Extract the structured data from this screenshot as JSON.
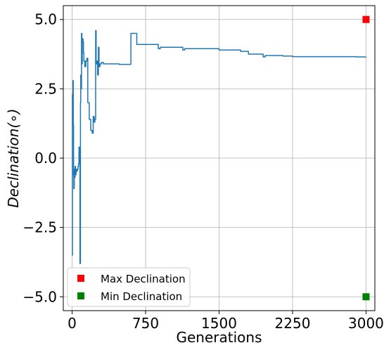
{
  "chart_data": {
    "type": "line",
    "xlabel": "Generations",
    "ylabel": "Declination(∘)",
    "xlim": [
      -90,
      3090
    ],
    "ylim": [
      -5.5,
      5.5
    ],
    "xticks": [
      0,
      750,
      1500,
      2250,
      3000
    ],
    "xtick_labels": [
      "0",
      "750",
      "1500",
      "2250",
      "3000"
    ],
    "yticks": [
      -5.0,
      -2.5,
      0.0,
      2.5,
      5.0
    ],
    "ytick_labels": [
      "−5.0",
      "−2.5",
      "0.0",
      "2.5",
      "5.0"
    ],
    "grid": true,
    "legend_placement": "lower-left",
    "series": [
      {
        "name": "",
        "style": "line",
        "color": "#1f77b4",
        "x": [
          0,
          3,
          6,
          9,
          12,
          15,
          18,
          22,
          26,
          30,
          35,
          40,
          45,
          50,
          55,
          60,
          65,
          70,
          75,
          80,
          85,
          88,
          92,
          96,
          100,
          104,
          108,
          112,
          116,
          120,
          130,
          140,
          145,
          150,
          160,
          175,
          190,
          205,
          215,
          225,
          232,
          240,
          245,
          250,
          255,
          260,
          268,
          275,
          285,
          290,
          295,
          300,
          320,
          360,
          420,
          480,
          500,
          540,
          590,
          600,
          650,
          660,
          700,
          800,
          880,
          900,
          1000,
          1100,
          1130,
          1150,
          1300,
          1480,
          1500,
          1700,
          1720,
          1780,
          1800,
          1900,
          1950,
          1970,
          2000,
          2150,
          2250,
          2400,
          2600,
          2800,
          2900,
          3000
        ],
        "y": [
          -3.5,
          2.3,
          1.8,
          2.8,
          1.2,
          -0.6,
          -1.1,
          -0.4,
          -0.7,
          -0.3,
          -0.6,
          -0.5,
          -0.4,
          -0.45,
          -0.4,
          -0.3,
          -0.2,
          0.4,
          -0.1,
          -3.8,
          2.0,
          3.0,
          2.5,
          4.5,
          3.4,
          4.3,
          4.3,
          4.2,
          3.8,
          3.5,
          3.3,
          3.5,
          3.5,
          3.6,
          2.0,
          1.4,
          1.0,
          0.9,
          1.5,
          1.3,
          1.4,
          4.6,
          3.5,
          3.4,
          3.5,
          3.0,
          4.0,
          3.3,
          3.4,
          3.4,
          3.4,
          3.45,
          3.4,
          3.4,
          3.4,
          3.38,
          3.38,
          3.38,
          3.38,
          4.5,
          4.5,
          4.1,
          4.1,
          4.1,
          3.95,
          4.0,
          4.0,
          4.0,
          3.9,
          3.95,
          3.95,
          3.95,
          3.9,
          3.9,
          3.85,
          3.85,
          3.75,
          3.75,
          3.65,
          3.7,
          3.7,
          3.68,
          3.66,
          3.66,
          3.66,
          3.66,
          3.65,
          3.65
        ]
      },
      {
        "name": "Max Declination",
        "style": "marker",
        "color": "#ff0000",
        "x": [
          3000
        ],
        "y": [
          5.0
        ]
      },
      {
        "name": "Min Declination",
        "style": "marker",
        "color": "#008000",
        "x": [
          3000
        ],
        "y": [
          -5.0
        ]
      }
    ]
  }
}
